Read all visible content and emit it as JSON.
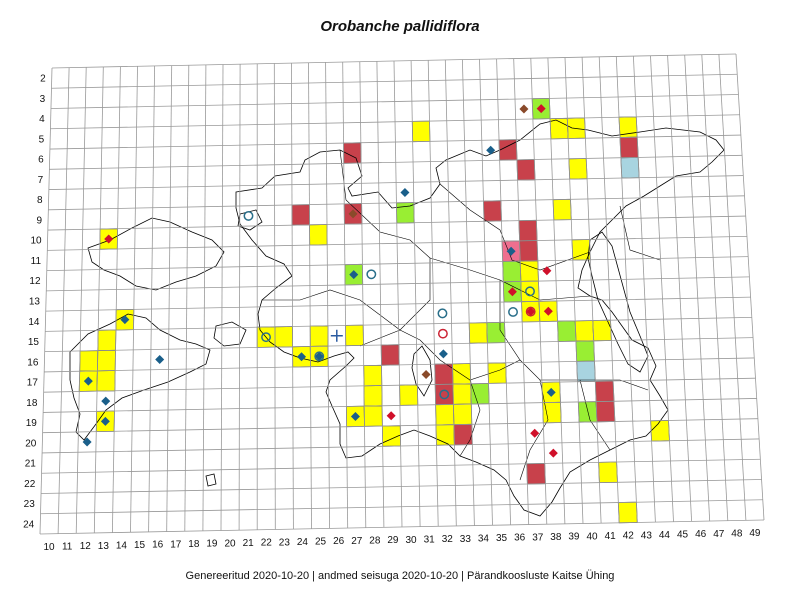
{
  "title": "Orobanche pallidiflora",
  "footer": "Genereeritud 2020-10-20  |  andmed seisuga 2020-10-20  |  Pärandkoosluste Kaitse Ühing",
  "grid": {
    "columns": [
      10,
      11,
      12,
      13,
      14,
      15,
      16,
      17,
      18,
      19,
      20,
      21,
      22,
      23,
      24,
      25,
      26,
      27,
      28,
      29,
      30,
      31,
      32,
      33,
      34,
      35,
      36,
      37,
      38,
      39,
      40,
      41,
      42,
      43,
      44,
      45,
      46,
      47,
      48,
      49
    ],
    "rows": [
      2,
      3,
      4,
      5,
      6,
      7,
      8,
      9,
      10,
      11,
      12,
      13,
      14,
      15,
      16,
      17,
      18,
      19,
      20,
      21,
      22,
      23,
      24
    ]
  },
  "colors": {
    "yellow": "#ffff00",
    "red": "#c8414b",
    "green": "#99ee33",
    "blue": "#a8d4e0",
    "pink": "#ee6f8f",
    "diamond_blue": "#1a5f8a",
    "diamond_red": "#d0102a",
    "diamond_brown": "#8a4a2a",
    "circle_blue": "#2a6f8a",
    "circle_red": "#cc2233",
    "plus_blue": "#2a5aa0"
  },
  "cells": [
    {
      "c": 13,
      "r": 10,
      "t": "yellow"
    },
    {
      "c": 14,
      "r": 14,
      "t": "yellow"
    },
    {
      "c": 13,
      "r": 15,
      "t": "yellow"
    },
    {
      "c": 12,
      "r": 16,
      "t": "yellow"
    },
    {
      "c": 13,
      "r": 16,
      "t": "yellow"
    },
    {
      "c": 12,
      "r": 17,
      "t": "yellow"
    },
    {
      "c": 13,
      "r": 17,
      "t": "yellow"
    },
    {
      "c": 13,
      "r": 19,
      "t": "yellow"
    },
    {
      "c": 22,
      "r": 15,
      "t": "yellow"
    },
    {
      "c": 23,
      "r": 15,
      "t": "yellow"
    },
    {
      "c": 25,
      "r": 15,
      "t": "yellow"
    },
    {
      "c": 27,
      "r": 15,
      "t": "yellow"
    },
    {
      "c": 24,
      "r": 16,
      "t": "yellow"
    },
    {
      "c": 25,
      "r": 16,
      "t": "yellow"
    },
    {
      "c": 25,
      "r": 10,
      "t": "yellow"
    },
    {
      "c": 24,
      "r": 9,
      "t": "red"
    },
    {
      "c": 27,
      "r": 9,
      "t": "red"
    },
    {
      "c": 27,
      "r": 6,
      "t": "red"
    },
    {
      "c": 30,
      "r": 9,
      "t": "green"
    },
    {
      "c": 27,
      "r": 12,
      "t": "green"
    },
    {
      "c": 29,
      "r": 16,
      "t": "red"
    },
    {
      "c": 28,
      "r": 17,
      "t": "yellow"
    },
    {
      "c": 28,
      "r": 18,
      "t": "yellow"
    },
    {
      "c": 27,
      "r": 19,
      "t": "yellow"
    },
    {
      "c": 28,
      "r": 19,
      "t": "yellow"
    },
    {
      "c": 30,
      "r": 18,
      "t": "yellow"
    },
    {
      "c": 29,
      "r": 20,
      "t": "yellow"
    },
    {
      "c": 31,
      "r": 5,
      "t": "yellow"
    },
    {
      "c": 32,
      "r": 17,
      "t": "red"
    },
    {
      "c": 32,
      "r": 18,
      "t": "red"
    },
    {
      "c": 33,
      "r": 17,
      "t": "yellow"
    },
    {
      "c": 33,
      "r": 18,
      "t": "yellow"
    },
    {
      "c": 34,
      "r": 18,
      "t": "green"
    },
    {
      "c": 32,
      "r": 19,
      "t": "yellow"
    },
    {
      "c": 33,
      "r": 19,
      "t": "yellow"
    },
    {
      "c": 32,
      "r": 20,
      "t": "yellow"
    },
    {
      "c": 33,
      "r": 20,
      "t": "red"
    },
    {
      "c": 34,
      "r": 15,
      "t": "yellow"
    },
    {
      "c": 35,
      "r": 15,
      "t": "green"
    },
    {
      "c": 35,
      "r": 17,
      "t": "yellow"
    },
    {
      "c": 36,
      "r": 6,
      "t": "red"
    },
    {
      "c": 37,
      "r": 7,
      "t": "red"
    },
    {
      "c": 35,
      "r": 9,
      "t": "red"
    },
    {
      "c": 37,
      "r": 10,
      "t": "red"
    },
    {
      "c": 36,
      "r": 11,
      "t": "pink"
    },
    {
      "c": 37,
      "r": 11,
      "t": "red"
    },
    {
      "c": 36,
      "r": 12,
      "t": "green"
    },
    {
      "c": 37,
      "r": 12,
      "t": "yellow"
    },
    {
      "c": 36,
      "r": 13,
      "t": "green"
    },
    {
      "c": 37,
      "r": 13,
      "t": "yellow"
    },
    {
      "c": 37,
      "r": 14,
      "t": "yellow"
    },
    {
      "c": 38,
      "r": 14,
      "t": "yellow"
    },
    {
      "c": 38,
      "r": 4,
      "t": "green"
    },
    {
      "c": 39,
      "r": 5,
      "t": "yellow"
    },
    {
      "c": 40,
      "r": 5,
      "t": "yellow"
    },
    {
      "c": 40,
      "r": 7,
      "t": "yellow"
    },
    {
      "c": 39,
      "r": 9,
      "t": "yellow"
    },
    {
      "c": 40,
      "r": 11,
      "t": "yellow"
    },
    {
      "c": 39,
      "r": 15,
      "t": "green"
    },
    {
      "c": 40,
      "r": 15,
      "t": "yellow"
    },
    {
      "c": 41,
      "r": 15,
      "t": "yellow"
    },
    {
      "c": 40,
      "r": 16,
      "t": "green"
    },
    {
      "c": 40,
      "r": 17,
      "t": "blue"
    },
    {
      "c": 38,
      "r": 18,
      "t": "yellow"
    },
    {
      "c": 38,
      "r": 19,
      "t": "yellow"
    },
    {
      "c": 40,
      "r": 19,
      "t": "green"
    },
    {
      "c": 41,
      "r": 18,
      "t": "red"
    },
    {
      "c": 41,
      "r": 19,
      "t": "red"
    },
    {
      "c": 43,
      "r": 5,
      "t": "yellow"
    },
    {
      "c": 43,
      "r": 6,
      "t": "red"
    },
    {
      "c": 43,
      "r": 7,
      "t": "blue"
    },
    {
      "c": 44,
      "r": 20,
      "t": "yellow"
    },
    {
      "c": 37,
      "r": 22,
      "t": "red"
    },
    {
      "c": 41,
      "r": 22,
      "t": "yellow"
    },
    {
      "c": 42,
      "r": 24,
      "t": "yellow"
    }
  ],
  "markers": [
    {
      "c": 13,
      "r": 10,
      "t": "diamond_red"
    },
    {
      "c": 14,
      "r": 14,
      "t": "diamond_blue"
    },
    {
      "c": 16,
      "r": 16,
      "t": "diamond_blue"
    },
    {
      "c": 12,
      "r": 17,
      "t": "diamond_blue"
    },
    {
      "c": 13,
      "r": 18,
      "t": "diamond_blue"
    },
    {
      "c": 13,
      "r": 19,
      "t": "diamond_blue"
    },
    {
      "c": 12,
      "r": 20,
      "t": "diamond_blue"
    },
    {
      "c": 21,
      "r": 9,
      "t": "circle_blue"
    },
    {
      "c": 22,
      "r": 15,
      "t": "circle_blue"
    },
    {
      "c": 26,
      "r": 15,
      "t": "plus_blue"
    },
    {
      "c": 24,
      "r": 16,
      "t": "diamond_blue"
    },
    {
      "c": 25,
      "r": 16,
      "t": "diamond_blue"
    },
    {
      "c": 25,
      "r": 16,
      "t": "circle_blue"
    },
    {
      "c": 27,
      "r": 9,
      "t": "diamond_brown"
    },
    {
      "c": 30,
      "r": 8,
      "t": "diamond_blue"
    },
    {
      "c": 27,
      "r": 12,
      "t": "diamond_blue"
    },
    {
      "c": 28,
      "r": 12,
      "t": "circle_blue"
    },
    {
      "c": 27,
      "r": 19,
      "t": "diamond_blue"
    },
    {
      "c": 29,
      "r": 19,
      "t": "diamond_red"
    },
    {
      "c": 31,
      "r": 17,
      "t": "diamond_brown"
    },
    {
      "c": 32,
      "r": 18,
      "t": "circle_blue"
    },
    {
      "c": 32,
      "r": 14,
      "t": "circle_blue"
    },
    {
      "c": 32,
      "r": 15,
      "t": "circle_red"
    },
    {
      "c": 32,
      "r": 16,
      "t": "diamond_blue"
    },
    {
      "c": 35,
      "r": 6,
      "t": "diamond_blue"
    },
    {
      "c": 37,
      "r": 4,
      "t": "diamond_brown"
    },
    {
      "c": 38,
      "r": 4,
      "t": "diamond_red"
    },
    {
      "c": 36,
      "r": 11,
      "t": "diamond_blue"
    },
    {
      "c": 36,
      "r": 13,
      "t": "diamond_red"
    },
    {
      "c": 37,
      "r": 13,
      "t": "circle_blue"
    },
    {
      "c": 36,
      "r": 14,
      "t": "circle_blue"
    },
    {
      "c": 37,
      "r": 14,
      "t": "diamond_red"
    },
    {
      "c": 37,
      "r": 14,
      "t": "circle_red"
    },
    {
      "c": 38,
      "r": 14,
      "t": "diamond_red"
    },
    {
      "c": 38,
      "r": 12,
      "t": "diamond_red"
    },
    {
      "c": 38,
      "r": 18,
      "t": "diamond_blue"
    },
    {
      "c": 37,
      "r": 20,
      "t": "diamond_red"
    },
    {
      "c": 38,
      "r": 21,
      "t": "diamond_red"
    }
  ]
}
